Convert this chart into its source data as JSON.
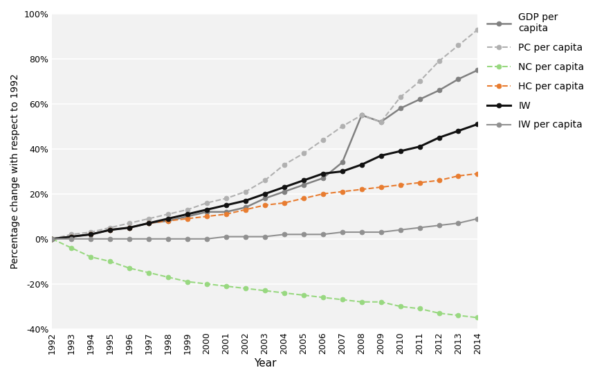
{
  "years": [
    1992,
    1993,
    1994,
    1995,
    1996,
    1997,
    1998,
    1999,
    2000,
    2001,
    2002,
    2003,
    2004,
    2005,
    2006,
    2007,
    2008,
    2009,
    2010,
    2011,
    2012,
    2013,
    2014
  ],
  "GDP_per_capita": [
    0,
    1,
    2,
    4,
    5,
    7,
    8,
    10,
    12,
    12,
    14,
    18,
    21,
    24,
    27,
    34,
    55,
    52,
    58,
    62,
    66,
    71,
    75
  ],
  "PC_per_capita": [
    0,
    2,
    3,
    5,
    7,
    9,
    11,
    13,
    16,
    18,
    21,
    26,
    33,
    38,
    44,
    50,
    55,
    52,
    63,
    70,
    79,
    86,
    93
  ],
  "NC_per_capita": [
    0,
    -4,
    -8,
    -10,
    -13,
    -15,
    -17,
    -19,
    -20,
    -21,
    -22,
    -23,
    -24,
    -25,
    -26,
    -27,
    -28,
    -28,
    -30,
    -31,
    -33,
    -34,
    -35
  ],
  "HC_per_capita": [
    0,
    1,
    2,
    4,
    5,
    7,
    8,
    9,
    10,
    11,
    13,
    15,
    16,
    18,
    20,
    21,
    22,
    23,
    24,
    25,
    26,
    28,
    29
  ],
  "IW": [
    0,
    1,
    2,
    4,
    5,
    7,
    9,
    11,
    13,
    15,
    17,
    20,
    23,
    26,
    29,
    30,
    33,
    37,
    39,
    41,
    45,
    48,
    51
  ],
  "IW_per_capita": [
    0,
    0,
    0,
    0,
    0,
    0,
    0,
    0,
    0,
    1,
    1,
    1,
    2,
    2,
    2,
    3,
    3,
    3,
    4,
    5,
    6,
    7,
    9
  ],
  "series": [
    {
      "key": "GDP_per_capita",
      "color": "#808080",
      "linestyle": "-",
      "marker": "o",
      "label": "GDP per\ncapita",
      "lw": 1.8
    },
    {
      "key": "PC_per_capita",
      "color": "#b0b0b0",
      "linestyle": "--",
      "marker": "o",
      "label": "PC per capita",
      "lw": 1.5
    },
    {
      "key": "NC_per_capita",
      "color": "#98d880",
      "linestyle": "--",
      "marker": "o",
      "label": "NC per capita",
      "lw": 1.5
    },
    {
      "key": "HC_per_capita",
      "color": "#e87c30",
      "linestyle": "--",
      "marker": "o",
      "label": "HC per capita",
      "lw": 1.5
    },
    {
      "key": "IW",
      "color": "#111111",
      "linestyle": "-",
      "marker": "o",
      "label": "IW",
      "lw": 2.2
    },
    {
      "key": "IW_per_capita",
      "color": "#909090",
      "linestyle": "-",
      "marker": "o",
      "label": "IW per capita",
      "lw": 1.5
    }
  ],
  "ylabel": "Percentage change with respect to 1992",
  "xlabel": "Year",
  "ylim": [
    -40,
    100
  ],
  "yticks": [
    -40,
    -20,
    0,
    20,
    40,
    60,
    80,
    100
  ],
  "bg_color": "#ffffff",
  "plot_bg_color": "#f2f2f2"
}
